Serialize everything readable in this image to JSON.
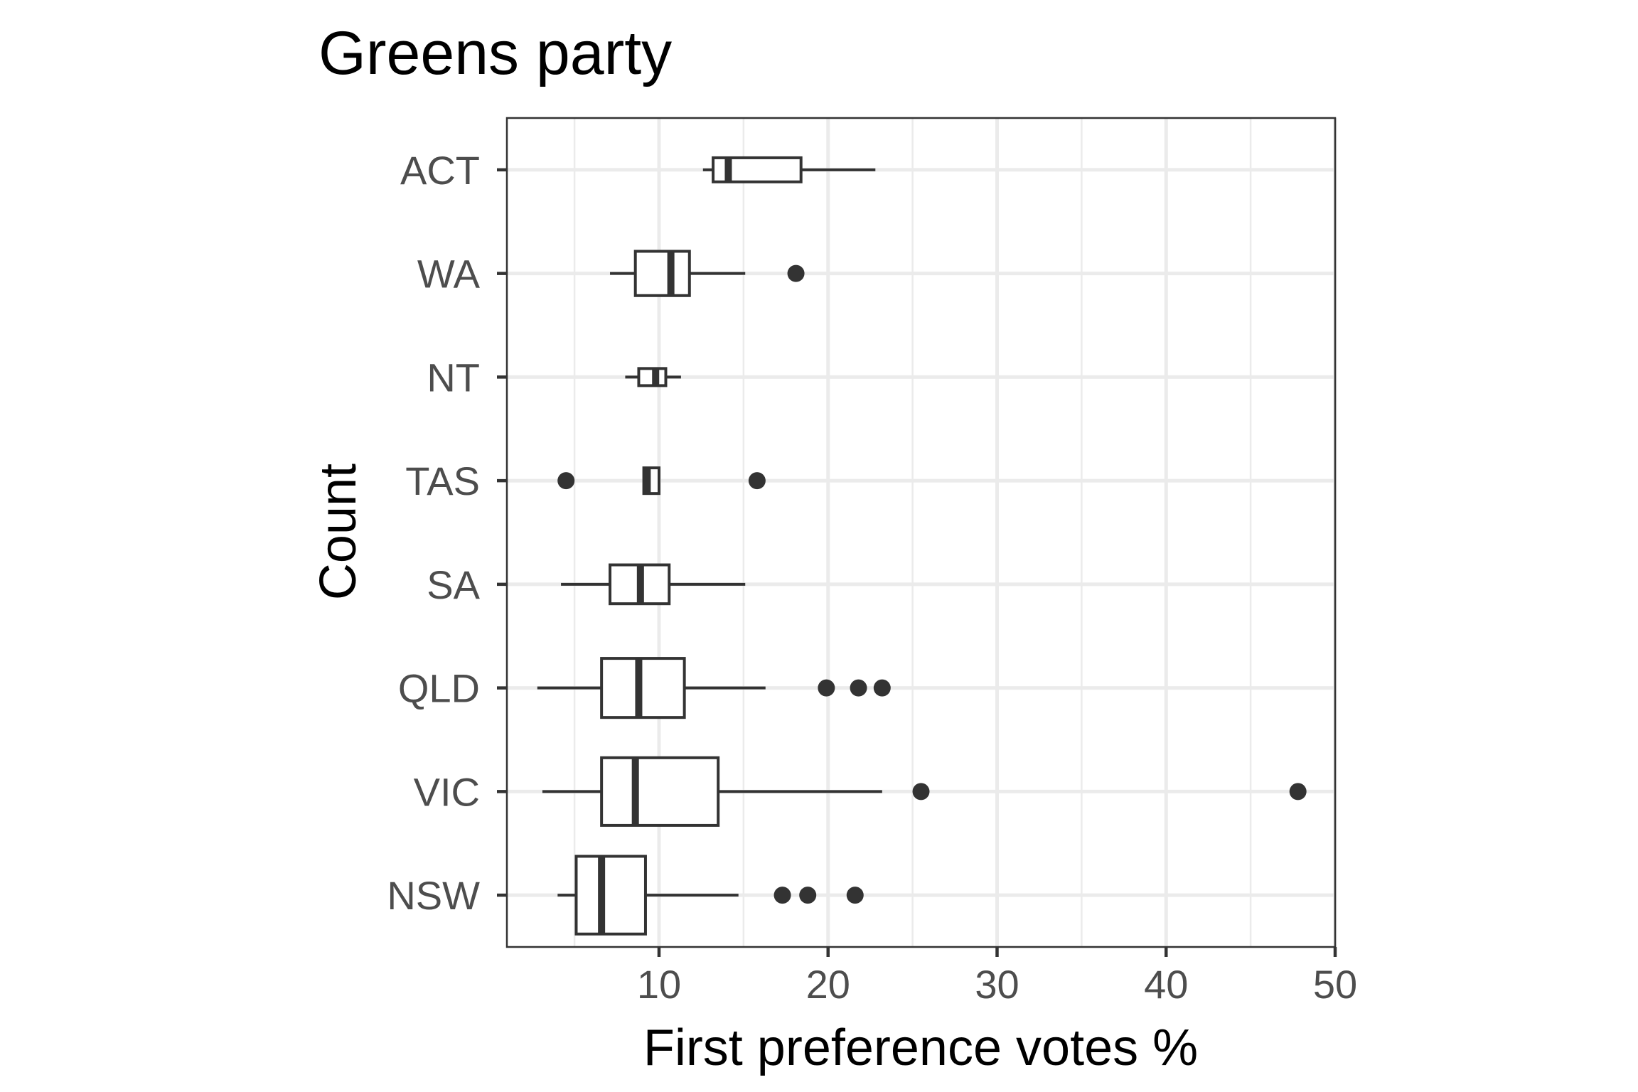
{
  "chart_data": {
    "type": "boxplot",
    "orientation": "horizontal",
    "title": "Greens party",
    "xlabel": "First preference votes %",
    "ylabel": "Count",
    "xlim": [
      1,
      50
    ],
    "xticks": [
      10,
      20,
      30,
      40,
      50
    ],
    "grid": true,
    "categories": [
      "NSW",
      "VIC",
      "QLD",
      "SA",
      "TAS",
      "NT",
      "WA",
      "ACT"
    ],
    "boxes": [
      {
        "category": "NSW",
        "whisker_low": 4.0,
        "q1": 5.1,
        "median": 6.6,
        "q3": 9.2,
        "whisker_high": 14.7,
        "outliers": [
          17.3,
          18.8,
          21.6
        ],
        "relative_width": 1.0
      },
      {
        "category": "VIC",
        "whisker_low": 3.1,
        "q1": 6.6,
        "median": 8.6,
        "q3": 13.5,
        "whisker_high": 23.2,
        "outliers": [
          25.5,
          47.8
        ],
        "relative_width": 0.87
      },
      {
        "category": "QLD",
        "whisker_low": 2.8,
        "q1": 6.6,
        "median": 8.8,
        "q3": 11.5,
        "whisker_high": 16.3,
        "outliers": [
          19.9,
          21.8,
          23.2
        ],
        "relative_width": 0.76
      },
      {
        "category": "SA",
        "whisker_low": 4.2,
        "q1": 7.1,
        "median": 8.9,
        "q3": 10.6,
        "whisker_high": 15.1,
        "outliers": [],
        "relative_width": 0.5
      },
      {
        "category": "TAS",
        "whisker_low": 9.1,
        "q1": 9.1,
        "median": 9.3,
        "q3": 10.0,
        "whisker_high": 10.0,
        "outliers": [
          4.5,
          15.8
        ],
        "relative_width": 0.33
      },
      {
        "category": "NT",
        "whisker_low": 8.0,
        "q1": 8.8,
        "median": 9.8,
        "q3": 10.4,
        "whisker_high": 11.3,
        "outliers": [],
        "relative_width": 0.22
      },
      {
        "category": "WA",
        "whisker_low": 7.1,
        "q1": 8.6,
        "median": 10.7,
        "q3": 11.8,
        "whisker_high": 15.1,
        "outliers": [
          18.1
        ],
        "relative_width": 0.57
      },
      {
        "category": "ACT",
        "whisker_low": 12.6,
        "q1": 13.2,
        "median": 14.1,
        "q3": 18.4,
        "whisker_high": 22.8,
        "outliers": [],
        "relative_width": 0.31
      }
    ]
  }
}
